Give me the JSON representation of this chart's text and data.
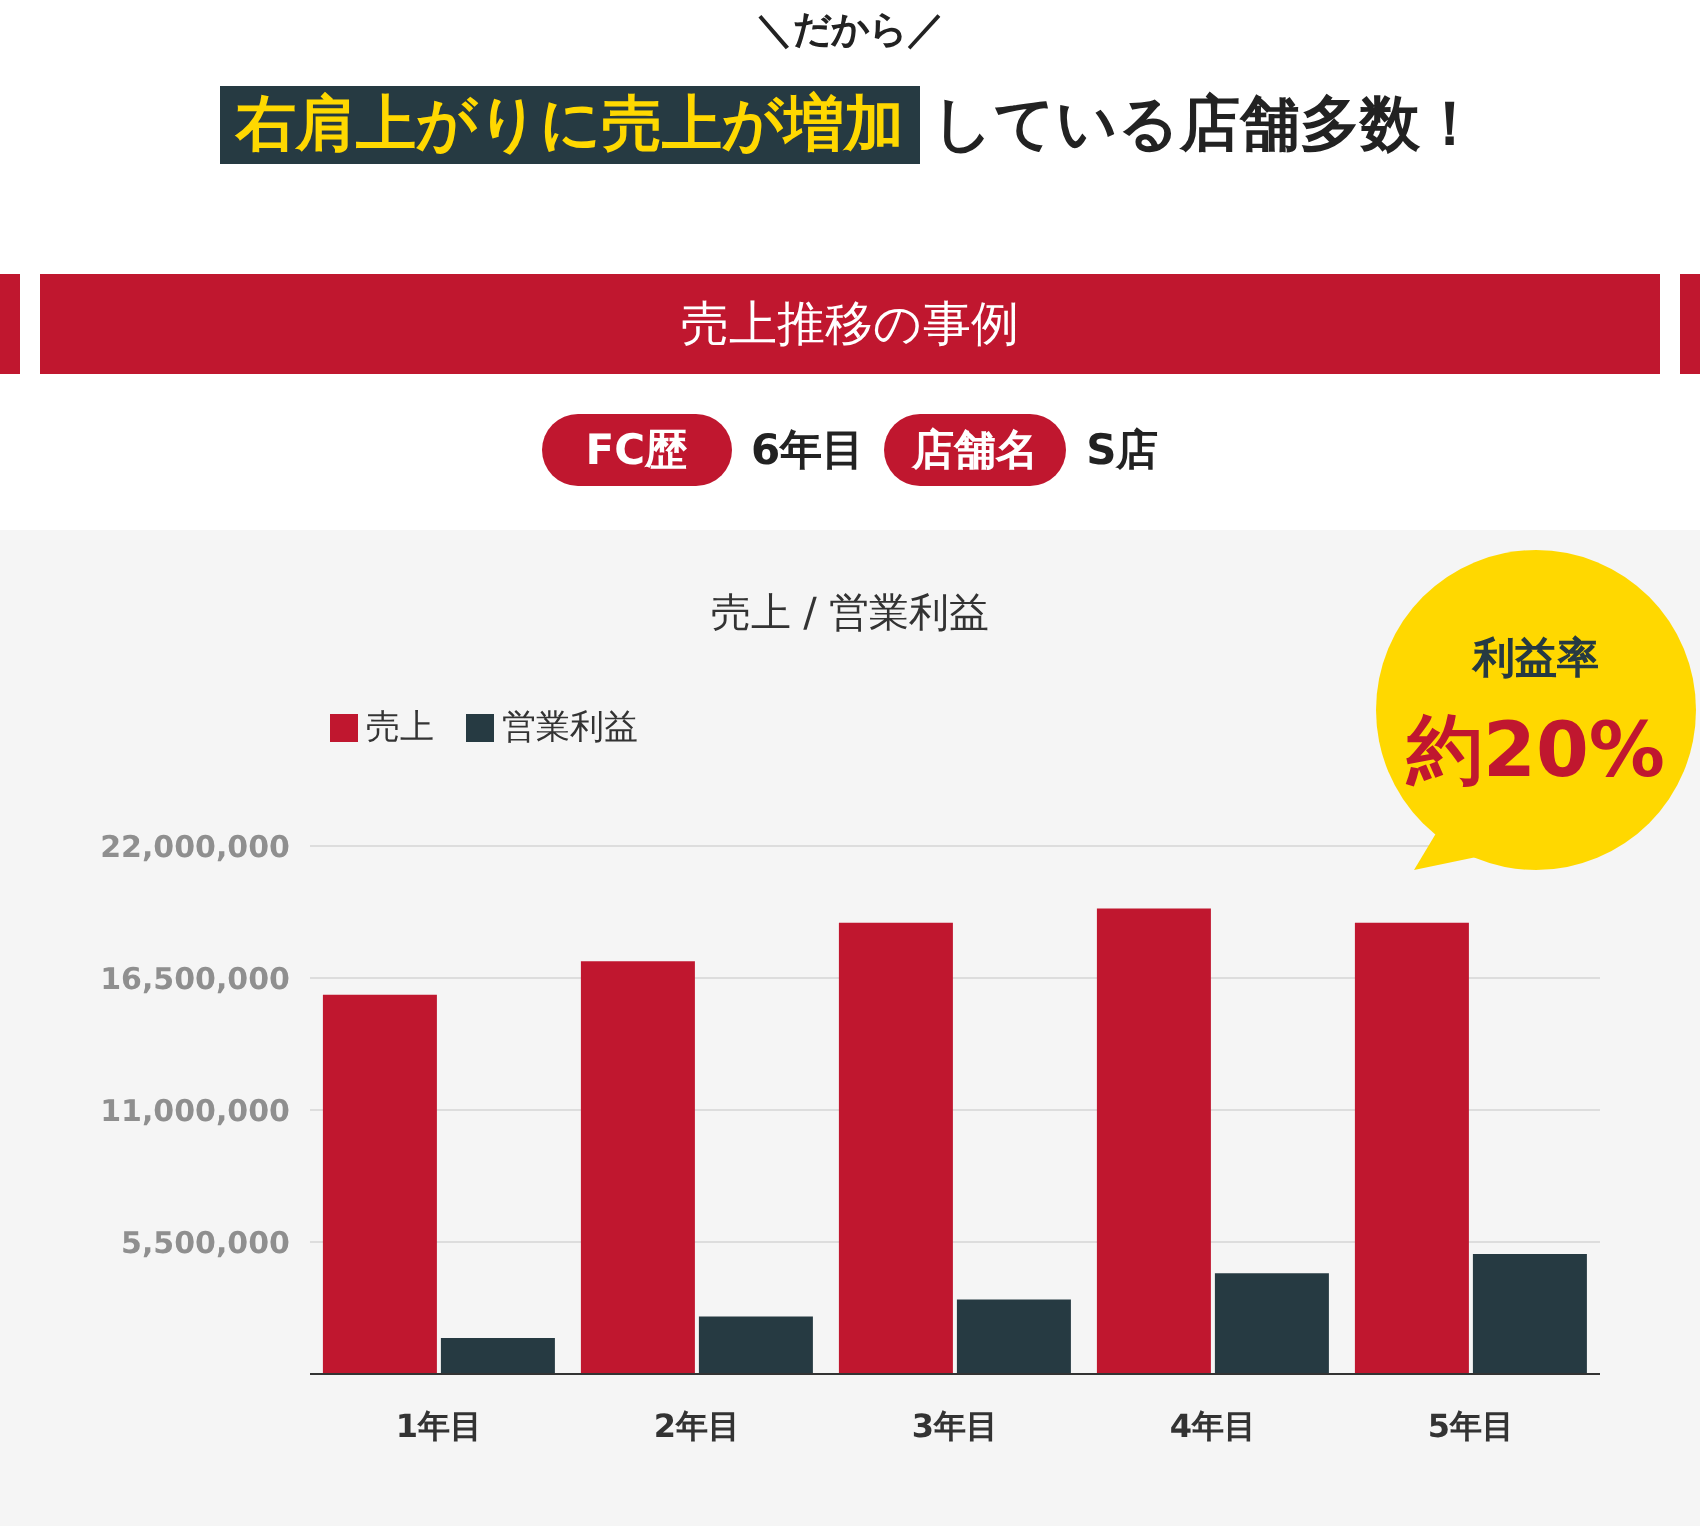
{
  "chart_data": {
    "type": "bar",
    "title": "売上 / 営業利益",
    "categories": [
      "1年目",
      "2年目",
      "3年目",
      "4年目",
      "5年目"
    ],
    "series": [
      {
        "name": "売上",
        "color": "#c0172f",
        "values": [
          15800000,
          17200000,
          18800000,
          19400000,
          18800000
        ]
      },
      {
        "name": "営業利益",
        "color": "#263a42",
        "values": [
          1500000,
          2400000,
          3100000,
          4200000,
          5000000
        ]
      }
    ],
    "ylim": [
      0,
      22000000
    ],
    "yticks": [
      {
        "value": 0,
        "label": null
      },
      {
        "value": 5500000,
        "label": "5,500,000"
      },
      {
        "value": 11000000,
        "label": "11,000,000"
      },
      {
        "value": 16500000,
        "label": "16,500,000"
      },
      {
        "value": 22000000,
        "label": "22,000,000"
      }
    ],
    "grid": "y",
    "legend": "top left",
    "annotations": [
      "＼だから／",
      "右肩上がりに売上が増加",
      "している店舗多数！",
      "売上推移の事例",
      "FC歴",
      "6年目",
      "店舗名",
      "S店",
      "利益率",
      "約20%"
    ]
  }
}
